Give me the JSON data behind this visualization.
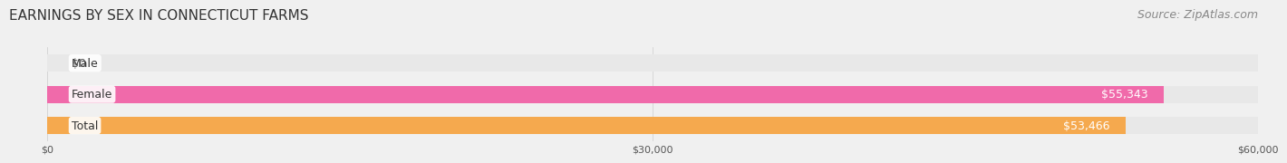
{
  "title": "EARNINGS BY SEX IN CONNECTICUT FARMS",
  "source": "Source: ZipAtlas.com",
  "categories": [
    "Male",
    "Female",
    "Total"
  ],
  "values": [
    0,
    55343,
    53466
  ],
  "bar_colors": [
    "#a8c4e0",
    "#f06aaa",
    "#f5a94e"
  ],
  "label_colors": [
    "#555555",
    "#ffffff",
    "#ffffff"
  ],
  "value_labels": [
    "$0",
    "$55,343",
    "$53,466"
  ],
  "xlim": [
    0,
    60000
  ],
  "xtick_values": [
    0,
    30000,
    60000
  ],
  "xtick_labels": [
    "$0",
    "$30,000",
    "$60,000"
  ],
  "background_color": "#f0f0f0",
  "bar_background_color": "#e8e8e8",
  "title_fontsize": 11,
  "source_fontsize": 9,
  "bar_height": 0.55,
  "bar_label_fontsize": 9,
  "category_fontsize": 9
}
